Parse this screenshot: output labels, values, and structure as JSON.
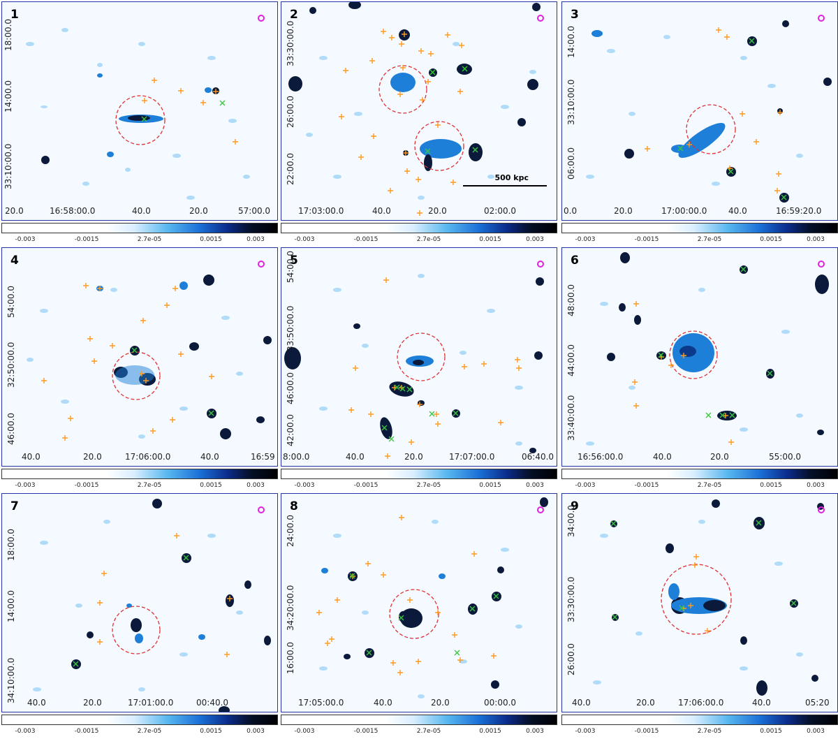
{
  "colorbar_ticks": [
    "-0.003",
    "-0.0015",
    "2.7e-05",
    "0.0015",
    "0.003"
  ],
  "colors": {
    "source": "#0b1a3a",
    "diffuse": "#1e7fd8",
    "noise": "#9fd3f7",
    "circle": "#e03030",
    "cross_orange": "#ff9a1f",
    "cross_green": "#33cc33",
    "beam": "#e020e0",
    "frame": "#2233aa"
  },
  "scale_label": "500 kpc",
  "panels": [
    {
      "num": "1",
      "ylabels": [
        "18:00.0",
        "14:00.0",
        "33:10:00.0"
      ],
      "xlabels": [
        "20.0",
        "16:58:00.0",
        "40.0",
        "20.0",
        "57:00.0"
      ]
    },
    {
      "num": "2",
      "ylabels": [
        "33:30:00.0",
        "26:00.0",
        "22:00.0"
      ],
      "xlabels": [
        "17:03:00.0",
        "40.0",
        "20.0",
        "02:00.0"
      ]
    },
    {
      "num": "3",
      "ylabels": [
        "14:00.0",
        "33:10:00.0",
        "06:00.0"
      ],
      "xlabels": [
        "0.0",
        "20.0",
        "17:00:00.0",
        "40.0",
        "16:59:20.0"
      ]
    },
    {
      "num": "4",
      "ylabels": [
        "54:00.0",
        "32:50:00.0",
        "46:00.0"
      ],
      "xlabels": [
        "40.0",
        "20.0",
        "17:06:00.0",
        "40.0",
        "16:59"
      ]
    },
    {
      "num": "5",
      "ylabels": [
        "54:00.0",
        "33:50:00.0",
        "46:00.0",
        "42:00.0"
      ],
      "xlabels": [
        "8:00.0",
        "40.0",
        "20.0",
        "17:07:00.0",
        "06:40.0"
      ]
    },
    {
      "num": "6",
      "ylabels": [
        "48:00.0",
        "44:00.0",
        "33:40:00.0"
      ],
      "xlabels": [
        "16:56:00.0",
        "40.0",
        "20.0",
        "55:00.0"
      ]
    },
    {
      "num": "7",
      "ylabels": [
        "18:00.0",
        "14:00.0",
        "34:10:00.0"
      ],
      "xlabels": [
        "40.0",
        "20.0",
        "17:01:00.0",
        "00:40.0"
      ]
    },
    {
      "num": "8",
      "ylabels": [
        "24:00.0",
        "34:20:00.0",
        "16:00.0"
      ],
      "xlabels": [
        "17:05:00.0",
        "40.0",
        "20.0",
        "00:00.0"
      ]
    },
    {
      "num": "9",
      "ylabels": [
        "34:00.0",
        "33:30:00.0",
        "26:00.0"
      ],
      "xlabels": [
        "40.0",
        "20.0",
        "17:06:00.0",
        "40.0",
        "05:20"
      ]
    }
  ]
}
